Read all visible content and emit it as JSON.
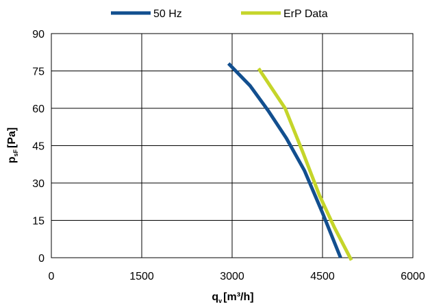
{
  "chart_data": {
    "type": "line",
    "series": [
      {
        "name": "50 Hz",
        "color": "#124f8f",
        "x": [
          2940,
          3300,
          3600,
          3900,
          4200,
          4500,
          4800
        ],
        "y": [
          78,
          69,
          59,
          48,
          35,
          18,
          0
        ]
      },
      {
        "name": "ErP Data",
        "color": "#c5d52a",
        "x": [
          3440,
          3880,
          4180,
          4450,
          4700,
          4980
        ],
        "y": [
          76,
          60,
          42,
          25,
          12,
          -1
        ]
      }
    ],
    "xlim": [
      0,
      6000
    ],
    "ylim": [
      0,
      90
    ],
    "xticks": [
      "0",
      "1500",
      "3000",
      "4500",
      "6000"
    ],
    "yticks": [
      "0",
      "15",
      "30",
      "45",
      "60",
      "75",
      "90"
    ],
    "xlabel": {
      "main": "q",
      "sub": "v",
      "unit": "[m³/h]"
    },
    "ylabel": {
      "main": "p",
      "sub": "sF",
      "unit": "[Pa]"
    },
    "grid": true,
    "legend_position": "top-center"
  }
}
